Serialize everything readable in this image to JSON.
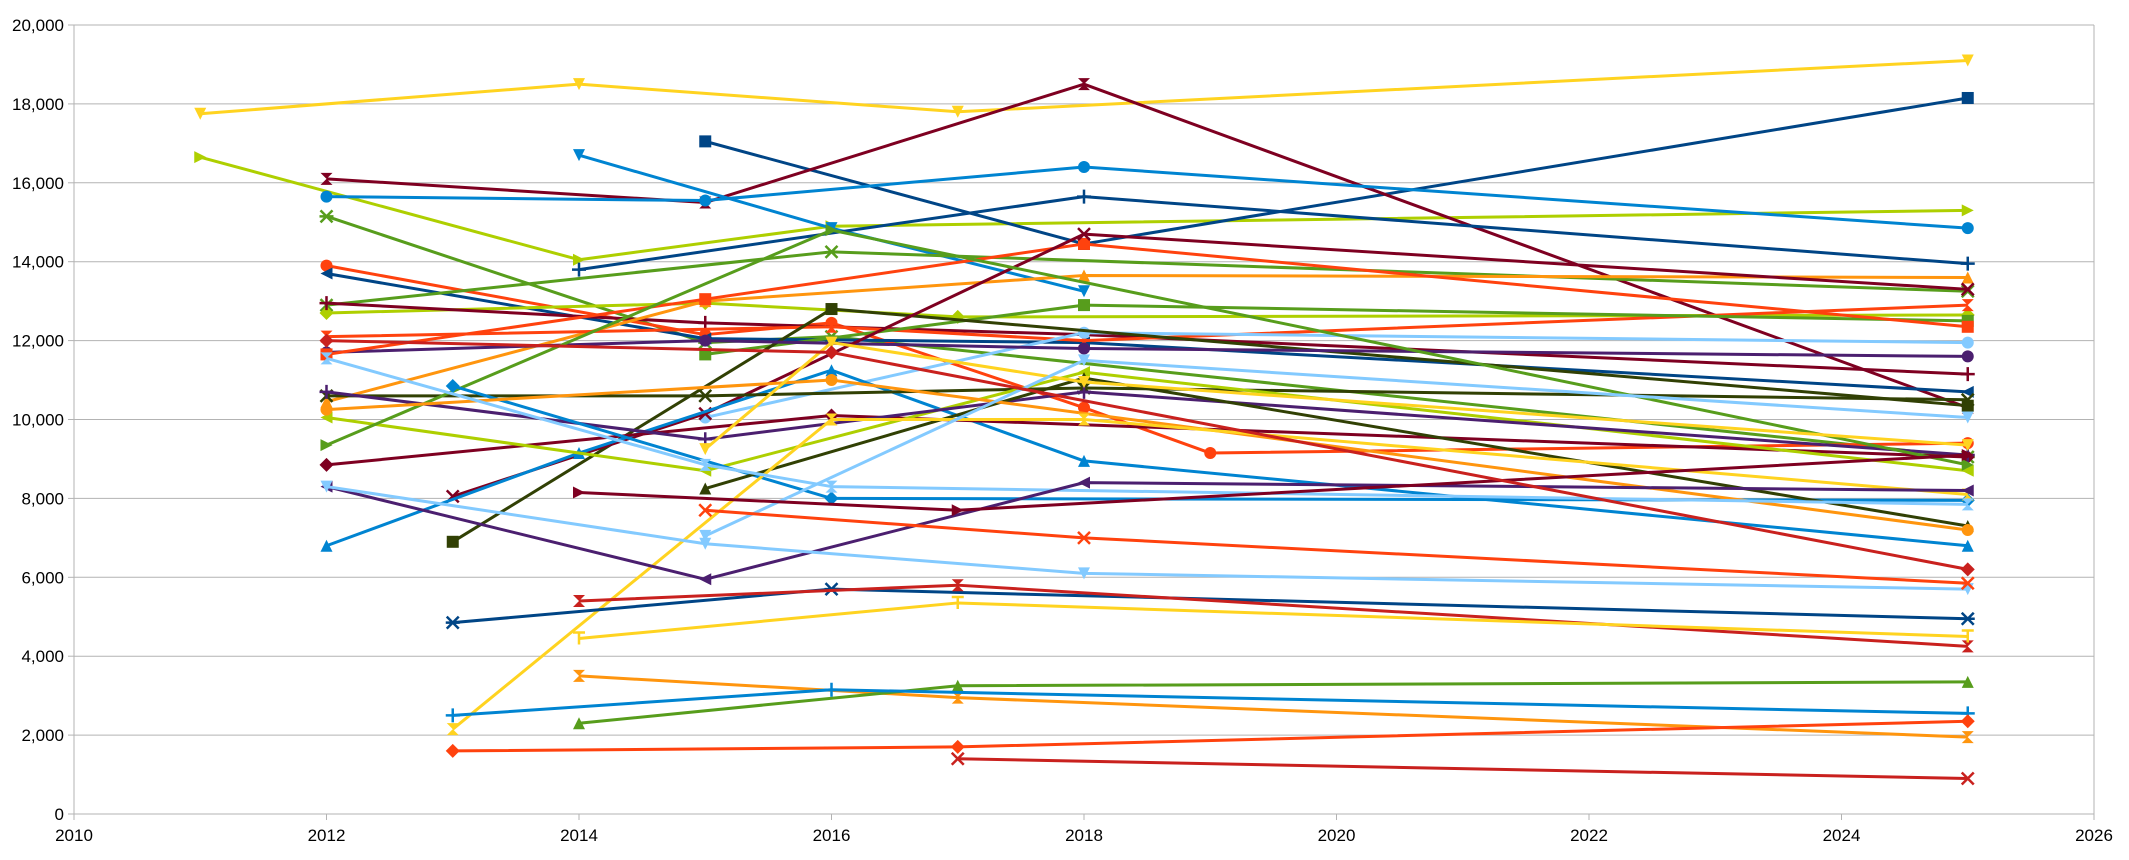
{
  "chart_data": {
    "type": "line",
    "title": "",
    "xlabel": "",
    "ylabel": "",
    "xlim": [
      2010,
      2026
    ],
    "ylim": [
      0,
      20000
    ],
    "grid": true,
    "legend": "none",
    "x_ticks": [
      {
        "value": 2010,
        "label": "2010"
      },
      {
        "value": 2012,
        "label": "2012"
      },
      {
        "value": 2014,
        "label": "2014"
      },
      {
        "value": 2016,
        "label": "2016"
      },
      {
        "value": 2018,
        "label": "2018"
      },
      {
        "value": 2020,
        "label": "2020"
      },
      {
        "value": 2022,
        "label": "2022"
      },
      {
        "value": 2024,
        "label": "2024"
      },
      {
        "value": 2026,
        "label": "2026"
      }
    ],
    "y_ticks": [
      {
        "value": 0,
        "label": "0"
      },
      {
        "value": 2000,
        "label": "2,000"
      },
      {
        "value": 4000,
        "label": "4,000"
      },
      {
        "value": 6000,
        "label": "6,000"
      },
      {
        "value": 8000,
        "label": "8,000"
      },
      {
        "value": 10000,
        "label": "10,000"
      },
      {
        "value": 12000,
        "label": "12,000"
      },
      {
        "value": 14000,
        "label": "14,000"
      },
      {
        "value": 16000,
        "label": "16,000"
      },
      {
        "value": 18000,
        "label": "18,000"
      },
      {
        "value": 20000,
        "label": "20,000"
      }
    ],
    "series": [
      {
        "color": "#ffd320",
        "marker": "tri-down",
        "points": [
          [
            2011,
            17750
          ],
          [
            2014,
            18500
          ],
          [
            2017,
            17800
          ],
          [
            2025,
            19100
          ]
        ]
      },
      {
        "color": "#aecf00",
        "marker": "tri-right",
        "points": [
          [
            2011,
            16650
          ],
          [
            2014,
            14050
          ],
          [
            2016,
            14900
          ],
          [
            2025,
            15300
          ]
        ]
      },
      {
        "color": "#004586",
        "marker": "square",
        "points": [
          [
            2015,
            17050
          ],
          [
            2018,
            14450
          ],
          [
            2025,
            18150
          ]
        ]
      },
      {
        "color": "#7e0021",
        "marker": "hourglass",
        "points": [
          [
            2012,
            16100
          ],
          [
            2015,
            15500
          ],
          [
            2018,
            18500
          ],
          [
            2025,
            10300
          ]
        ]
      },
      {
        "color": "#0084d1",
        "marker": "circle",
        "points": [
          [
            2012,
            15650
          ],
          [
            2015,
            15550
          ],
          [
            2018,
            16400
          ],
          [
            2025,
            14850
          ]
        ]
      },
      {
        "color": "#0084d1",
        "marker": "tri-down",
        "points": [
          [
            2014,
            16700
          ],
          [
            2016,
            14850
          ],
          [
            2018,
            13250
          ]
        ]
      },
      {
        "color": "#004586",
        "marker": "plus",
        "points": [
          [
            2014,
            13800
          ],
          [
            2018,
            15650
          ],
          [
            2025,
            13950
          ]
        ]
      },
      {
        "color": "#579d1c",
        "marker": "asterisk",
        "points": [
          [
            2012,
            15150
          ],
          [
            2015,
            11950
          ],
          [
            2016,
            12100
          ],
          [
            2025,
            9050
          ]
        ]
      },
      {
        "color": "#ff420e",
        "marker": "circle",
        "points": [
          [
            2012,
            13900
          ],
          [
            2015,
            12150
          ],
          [
            2016,
            12450
          ],
          [
            2018,
            10300
          ],
          [
            2019,
            9150
          ],
          [
            2025,
            9400
          ]
        ]
      },
      {
        "color": "#004586",
        "marker": "tri-left",
        "points": [
          [
            2012,
            13700
          ],
          [
            2015,
            12050
          ],
          [
            2018,
            11950
          ],
          [
            2025,
            10700
          ]
        ]
      },
      {
        "color": "#579d1c",
        "marker": "x",
        "points": [
          [
            2012,
            12900
          ],
          [
            2016,
            14250
          ],
          [
            2025,
            13250
          ]
        ]
      },
      {
        "color": "#aecf00",
        "marker": "diamond",
        "points": [
          [
            2012,
            12700
          ],
          [
            2015,
            12950
          ],
          [
            2017,
            12600
          ],
          [
            2025,
            12650
          ]
        ]
      },
      {
        "color": "#7e0021",
        "marker": "plus",
        "points": [
          [
            2012,
            12950
          ],
          [
            2015,
            12450
          ],
          [
            2018,
            12150
          ],
          [
            2025,
            11150
          ]
        ]
      },
      {
        "color": "#ff950e",
        "marker": "triangle",
        "points": [
          [
            2012,
            10450
          ],
          [
            2015,
            13000
          ],
          [
            2018,
            13650
          ],
          [
            2025,
            13600
          ]
        ]
      },
      {
        "color": "#ff420e",
        "marker": "hourglass",
        "points": [
          [
            2012,
            12100
          ],
          [
            2016,
            12350
          ],
          [
            2018,
            12000
          ],
          [
            2025,
            12900
          ]
        ]
      },
      {
        "color": "#579d1c",
        "marker": "square",
        "points": [
          [
            2015,
            11650
          ],
          [
            2018,
            12900
          ],
          [
            2025,
            12500
          ]
        ]
      },
      {
        "color": "#83caff",
        "marker": "circle",
        "points": [
          [
            2015,
            10050
          ],
          [
            2018,
            12200
          ],
          [
            2025,
            11950
          ]
        ]
      },
      {
        "color": "#314004",
        "marker": "square",
        "points": [
          [
            2013,
            6900
          ],
          [
            2016,
            12800
          ],
          [
            2025,
            10350
          ]
        ]
      },
      {
        "color": "#4b1f6f",
        "marker": "circle",
        "points": [
          [
            2012,
            11700
          ],
          [
            2015,
            12000
          ],
          [
            2018,
            11800
          ],
          [
            2025,
            11600
          ]
        ]
      },
      {
        "color": "#ff420e",
        "marker": "square",
        "points": [
          [
            2012,
            11650
          ],
          [
            2015,
            13050
          ],
          [
            2018,
            14450
          ],
          [
            2025,
            12350
          ]
        ]
      },
      {
        "color": "#7e0021",
        "marker": "x",
        "points": [
          [
            2013,
            8050
          ],
          [
            2015,
            10150
          ],
          [
            2018,
            14700
          ],
          [
            2025,
            13300
          ]
        ]
      },
      {
        "color": "#0084d1",
        "marker": "triangle",
        "points": [
          [
            2012,
            6800
          ],
          [
            2014,
            9150
          ],
          [
            2016,
            11250
          ],
          [
            2018,
            8950
          ],
          [
            2025,
            6800
          ]
        ]
      },
      {
        "color": "#314004",
        "marker": "x",
        "points": [
          [
            2012,
            10600
          ],
          [
            2015,
            10600
          ],
          [
            2018,
            10800
          ],
          [
            2025,
            10500
          ]
        ]
      },
      {
        "color": "#7e0021",
        "marker": "diamond",
        "points": [
          [
            2012,
            8850
          ],
          [
            2016,
            10100
          ],
          [
            2025,
            9050
          ]
        ]
      },
      {
        "color": "#aecf00",
        "marker": "tri-left",
        "points": [
          [
            2012,
            10050
          ],
          [
            2015,
            8700
          ],
          [
            2018,
            11200
          ],
          [
            2025,
            8700
          ]
        ]
      },
      {
        "color": "#4b1f6f",
        "marker": "plus",
        "points": [
          [
            2012,
            10700
          ],
          [
            2015,
            9500
          ],
          [
            2018,
            10700
          ],
          [
            2025,
            9100
          ]
        ]
      },
      {
        "color": "#579d1c",
        "marker": "tri-right",
        "points": [
          [
            2012,
            9350
          ],
          [
            2016,
            14800
          ],
          [
            2025,
            8850
          ]
        ]
      },
      {
        "color": "#0084d1",
        "marker": "diamond",
        "points": [
          [
            2013,
            10850
          ],
          [
            2016,
            8000
          ],
          [
            2025,
            7950
          ]
        ]
      },
      {
        "color": "#314004",
        "marker": "triangle",
        "points": [
          [
            2015,
            8250
          ],
          [
            2018,
            11050
          ],
          [
            2025,
            7300
          ]
        ]
      },
      {
        "color": "#ff950e",
        "marker": "circle",
        "points": [
          [
            2012,
            10250
          ],
          [
            2016,
            11000
          ],
          [
            2025,
            7200
          ]
        ]
      },
      {
        "color": "#ffd320",
        "marker": "tri-down",
        "points": [
          [
            2015,
            9250
          ],
          [
            2016,
            11950
          ],
          [
            2018,
            10950
          ],
          [
            2025,
            9350
          ]
        ]
      },
      {
        "color": "#ffd320",
        "marker": "hourglass",
        "points": [
          [
            2013,
            2150
          ],
          [
            2016,
            10000
          ],
          [
            2018,
            10000
          ],
          [
            2025,
            8100
          ]
        ]
      },
      {
        "color": "#83caff",
        "marker": "tri-down",
        "points": [
          [
            2015,
            7050
          ],
          [
            2018,
            11500
          ],
          [
            2025,
            10050
          ]
        ]
      },
      {
        "color": "#83caff",
        "marker": "hourglass",
        "points": [
          [
            2012,
            11550
          ],
          [
            2015,
            8850
          ],
          [
            2016,
            8300
          ],
          [
            2025,
            7850
          ]
        ]
      },
      {
        "color": "#4b1f6f",
        "marker": "tri-left",
        "points": [
          [
            2012,
            8300
          ],
          [
            2015,
            5950
          ],
          [
            2018,
            8400
          ],
          [
            2025,
            8200
          ]
        ]
      },
      {
        "color": "#7e0021",
        "marker": "tri-right",
        "points": [
          [
            2014,
            8150
          ],
          [
            2017,
            7700
          ],
          [
            2025,
            9100
          ]
        ]
      },
      {
        "color": "#83caff",
        "marker": "tri-down",
        "points": [
          [
            2012,
            8300
          ],
          [
            2015,
            6850
          ],
          [
            2018,
            6100
          ],
          [
            2025,
            5700
          ]
        ]
      },
      {
        "color": "#ff420e",
        "marker": "x",
        "points": [
          [
            2015,
            7700
          ],
          [
            2018,
            7000
          ],
          [
            2025,
            5850
          ]
        ]
      },
      {
        "color": "#c9211e",
        "marker": "diamond",
        "points": [
          [
            2012,
            12000
          ],
          [
            2016,
            11700
          ],
          [
            2025,
            6200
          ]
        ]
      },
      {
        "color": "#004586",
        "marker": "asterisk",
        "points": [
          [
            2013,
            4850
          ],
          [
            2016,
            5700
          ],
          [
            2025,
            4950
          ]
        ]
      },
      {
        "color": "#c9211e",
        "marker": "hourglass",
        "points": [
          [
            2014,
            5400
          ],
          [
            2017,
            5800
          ],
          [
            2025,
            4250
          ]
        ]
      },
      {
        "color": "#ffd320",
        "marker": "tri-up-bar",
        "points": [
          [
            2014,
            4450
          ],
          [
            2017,
            5350
          ],
          [
            2025,
            4500
          ]
        ]
      },
      {
        "color": "#ff950e",
        "marker": "hourglass",
        "points": [
          [
            2014,
            3500
          ],
          [
            2017,
            2950
          ],
          [
            2025,
            1950
          ]
        ]
      },
      {
        "color": "#579d1c",
        "marker": "triangle",
        "points": [
          [
            2014,
            2300
          ],
          [
            2017,
            3250
          ],
          [
            2025,
            3350
          ]
        ]
      },
      {
        "color": "#0084d1",
        "marker": "plus",
        "points": [
          [
            2013,
            2500
          ],
          [
            2016,
            3150
          ],
          [
            2025,
            2550
          ]
        ]
      },
      {
        "color": "#ff420e",
        "marker": "diamond",
        "points": [
          [
            2013,
            1600
          ],
          [
            2017,
            1700
          ],
          [
            2025,
            2350
          ]
        ]
      },
      {
        "color": "#c9211e",
        "marker": "x",
        "points": [
          [
            2017,
            1400
          ],
          [
            2025,
            900
          ]
        ]
      }
    ]
  }
}
